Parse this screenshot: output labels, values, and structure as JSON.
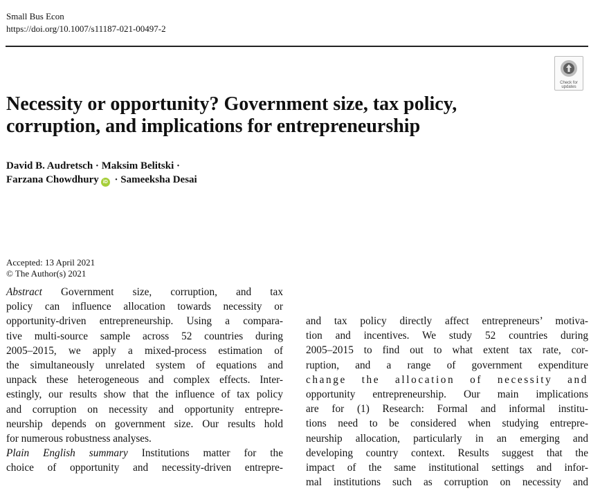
{
  "header": {
    "journal": "Small Bus Econ",
    "doi": "https://doi.org/10.1007/s11187-021-00497-2"
  },
  "check_badge": {
    "line1": "Check for",
    "line2": "updates",
    "icon": "check-for-updates-icon"
  },
  "title": {
    "line1": "Necessity or opportunity? Government size, tax policy,",
    "line2": "corruption, and implications for entrepreneurship"
  },
  "authors": {
    "a1": "David B. Audretsch",
    "a2": "Maksim Belitski",
    "a3": "Farzana Chowdhury",
    "a4": "Sameeksha Desai",
    "sep": " · ",
    "orcid_text": "iD",
    "orcid_color": "#a6ce39"
  },
  "dates": {
    "accepted": "Accepted: 13 April 2021",
    "copyright": "© The Author(s) 2021"
  },
  "abstract": {
    "label": "Abstract",
    "lines": [
      " Government size, corruption, and tax",
      "policy can influence allocation towards necessity or",
      "opportunity-driven entrepreneurship. Using a compara-",
      "tive multi-source sample across 52 countries during",
      "2005–2015, we apply a mixed-process estimation of",
      "the simultaneously unrelated system of equations and",
      "unpack these heterogeneous and complex effects. Inter-",
      "estingly, our results show that the influence of tax policy",
      "and corruption on necessity and opportunity entrepre-",
      "neurship depends on government size. Our results hold",
      "for numerous robustness analyses."
    ]
  },
  "summary": {
    "label": "Plain English summary",
    "lines": [
      " Institutions matter for the",
      "choice of opportunity and necessity-driven entrepre-"
    ]
  },
  "right_column": {
    "lines": [
      "and tax policy directly affect entrepreneurs’ motiva-",
      "tion and incentives. We study 52 countries during",
      "2005–2015 to find out to what extent tax rate, cor-",
      "ruption, and a range of government expenditure",
      "change the allocation of necessity and",
      "opportunity entrepreneurship. Our main implications",
      "are for (1) Research: Formal and informal institu-",
      "tions need to be considered when studying entrepre-",
      "neurship allocation, particularly in an emerging and",
      "developing country context. Results suggest that the",
      "impact of the same institutional settings and infor-",
      "mal institutions such as corruption on necessity and"
    ]
  }
}
